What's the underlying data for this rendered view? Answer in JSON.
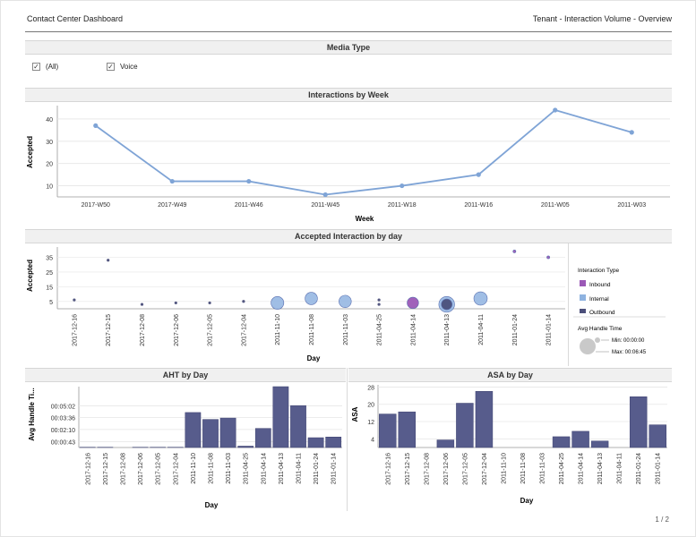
{
  "header": {
    "title": "Contact Center Dashboard",
    "breadcrumb": "Tenant  -  Interaction Volume  -  Overview"
  },
  "media_type": {
    "title": "Media Type",
    "options": [
      {
        "label": "(All)",
        "checked": true
      },
      {
        "label": "Voice",
        "checked": true
      }
    ]
  },
  "pager": "1 / 2",
  "colors": {
    "line": "#7fa4d6",
    "bar": "#575c8c",
    "inbound": "#9b59b6",
    "internal": "#8fb3e0",
    "outbound": "#4b4f7a",
    "handle_time": "#c9c9c9"
  },
  "legend": {
    "type_title": "Interaction Type",
    "types": [
      "Inbound",
      "Internal",
      "Outbound"
    ],
    "size_title": "Avg Handle Time",
    "size_min": "Min: 00:00:00",
    "size_max": "Max: 00:06:45"
  },
  "chart_data": [
    {
      "id": "weekly",
      "type": "line",
      "title": "Interactions by Week",
      "xlabel": "Week",
      "ylabel": "Accepted",
      "categories": [
        "2017-W50",
        "2017-W49",
        "2011-W46",
        "2011-W45",
        "2011-W18",
        "2011-W16",
        "2011-W05",
        "2011-W03"
      ],
      "values": [
        37,
        12,
        12,
        6,
        10,
        15,
        44,
        34
      ],
      "ylim": [
        5,
        46
      ],
      "yticks": [
        10,
        20,
        30,
        40
      ],
      "grid": true
    },
    {
      "id": "daily",
      "type": "scatter",
      "title": "Accepted Interaction by day",
      "xlabel": "Day",
      "ylabel": "Accepted",
      "categories": [
        "2017-12-16",
        "2017-12-15",
        "2017-12-08",
        "2017-12-06",
        "2017-12-05",
        "2017-12-04",
        "2011-11-10",
        "2011-11-08",
        "2011-11-03",
        "2011-04-25",
        "2011-04-14",
        "2011-04-13",
        "2011-04-11",
        "2011-01-24",
        "2011-01-14"
      ],
      "ylim": [
        0,
        42
      ],
      "yticks": [
        5,
        15,
        25,
        35
      ],
      "points": [
        {
          "x": "2017-12-16",
          "y": 6,
          "type": "Outbound",
          "handle": "00:00:00"
        },
        {
          "x": "2017-12-15",
          "y": 33,
          "type": "Outbound",
          "handle": "00:00:00"
        },
        {
          "x": "2017-12-08",
          "y": 3,
          "type": "Outbound",
          "handle": "00:00:00"
        },
        {
          "x": "2017-12-06",
          "y": 4,
          "type": "Outbound",
          "handle": "00:00:00"
        },
        {
          "x": "2017-12-05",
          "y": 4,
          "type": "Outbound",
          "handle": "00:00:00"
        },
        {
          "x": "2017-12-04",
          "y": 5,
          "type": "Outbound",
          "handle": "00:00:00"
        },
        {
          "x": "2011-11-10",
          "y": 4,
          "type": "Internal",
          "handle": "00:04:00"
        },
        {
          "x": "2011-11-08",
          "y": 7,
          "type": "Internal",
          "handle": "00:03:40"
        },
        {
          "x": "2011-11-03",
          "y": 5,
          "type": "Internal",
          "handle": "00:03:40"
        },
        {
          "x": "2011-04-25",
          "y": 6,
          "type": "Outbound",
          "handle": "00:00:00"
        },
        {
          "x": "2011-04-25",
          "y": 3,
          "type": "Outbound",
          "handle": "00:00:00"
        },
        {
          "x": "2011-04-14",
          "y": 4,
          "type": "Inbound",
          "handle": "00:03:00"
        },
        {
          "x": "2011-04-13",
          "y": 3,
          "type": "Internal",
          "handle": "00:06:45"
        },
        {
          "x": "2011-04-13",
          "y": 3,
          "type": "Outbound",
          "handle": "00:02:30"
        },
        {
          "x": "2011-04-11",
          "y": 7,
          "type": "Internal",
          "handle": "00:04:30"
        },
        {
          "x": "2011-01-24",
          "y": 39,
          "type": "Inbound",
          "handle": "00:00:00"
        },
        {
          "x": "2011-01-14",
          "y": 35,
          "type": "Inbound",
          "handle": "00:00:00"
        }
      ]
    },
    {
      "id": "aht",
      "type": "bar",
      "title": "AHT by Day",
      "xlabel": "Day",
      "ylabel": "Avg Handle Ti...",
      "categories": [
        "2017-12-16",
        "2017-12-15",
        "2017-12-08",
        "2017-12-06",
        "2017-12-05",
        "2017-12-04",
        "2011-11-10",
        "2011-11-08",
        "2011-11-03",
        "2011-04-25",
        "2011-04-14",
        "2011-04-13",
        "2011-04-11",
        "2011-01-24",
        "2011-01-14"
      ],
      "values_seconds": [
        2,
        2,
        0,
        2,
        2,
        2,
        253,
        203,
        213,
        10,
        138,
        440,
        303,
        71,
        76
      ],
      "yticks": [
        "00:00:43",
        "00:02:10",
        "00:03:36",
        "00:05:02"
      ],
      "ytick_seconds": [
        43,
        130,
        216,
        302
      ],
      "ylim": [
        0,
        440
      ]
    },
    {
      "id": "asa",
      "type": "bar",
      "title": "ASA by Day",
      "xlabel": "Day",
      "ylabel": "ASA",
      "categories": [
        "2017-12-16",
        "2017-12-15",
        "2017-12-08",
        "2017-12-06",
        "2017-12-05",
        "2017-12-04",
        "2011-11-10",
        "2011-11-08",
        "2011-11-03",
        "2011-04-25",
        "2011-04-14",
        "2011-04-13",
        "2011-04-11",
        "2011-01-24",
        "2011-01-14"
      ],
      "values": [
        15.5,
        16.5,
        0,
        3.5,
        20.5,
        26,
        0,
        0,
        0,
        5,
        7.5,
        3,
        0,
        23.5,
        10.5
      ],
      "yticks": [
        4,
        12,
        20,
        28
      ],
      "ylim": [
        0,
        29
      ]
    }
  ]
}
